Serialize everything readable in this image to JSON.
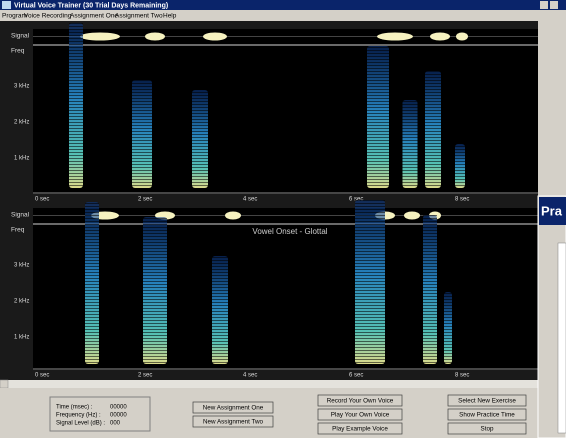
{
  "window": {
    "title": "Virtual Voice Trainer (30 Trial Days Remaining)",
    "menu": [
      "Program",
      "Voice Recording",
      "Assignment One",
      "Assignment Two",
      "Help"
    ]
  },
  "panels": [
    {
      "signal_label": "Signal",
      "freq_label": "Freq",
      "freq_ticks": [
        "3 kHz",
        "2 kHz",
        "1 kHz"
      ],
      "time_ticks": [
        "0 sec",
        "2 sec",
        "4 sec",
        "6 sec",
        "8 sec"
      ]
    },
    {
      "signal_label": "Signal",
      "freq_label": "Freq",
      "caption": "Vowel Onset - Glottal",
      "freq_ticks": [
        "3 kHz",
        "2 kHz",
        "1 kHz"
      ],
      "time_ticks": [
        "0 sec",
        "2 sec",
        "4 sec",
        "6 sec",
        "8 sec"
      ]
    }
  ],
  "status": {
    "rows": [
      [
        "Time (msec) :",
        "00000"
      ],
      [
        "Frequency (Hz) :",
        "00000"
      ],
      [
        "Signal Level (dB) :",
        "000"
      ]
    ]
  },
  "buttons": [
    "New Assignment One",
    "New Assignment Two",
    "Record Your Own Voice",
    "Play Your Own Voice",
    "Play Example Voice",
    "Select New Exercise",
    "Show Practice Time",
    "Stop"
  ],
  "side_window": {
    "title": "Pra"
  }
}
